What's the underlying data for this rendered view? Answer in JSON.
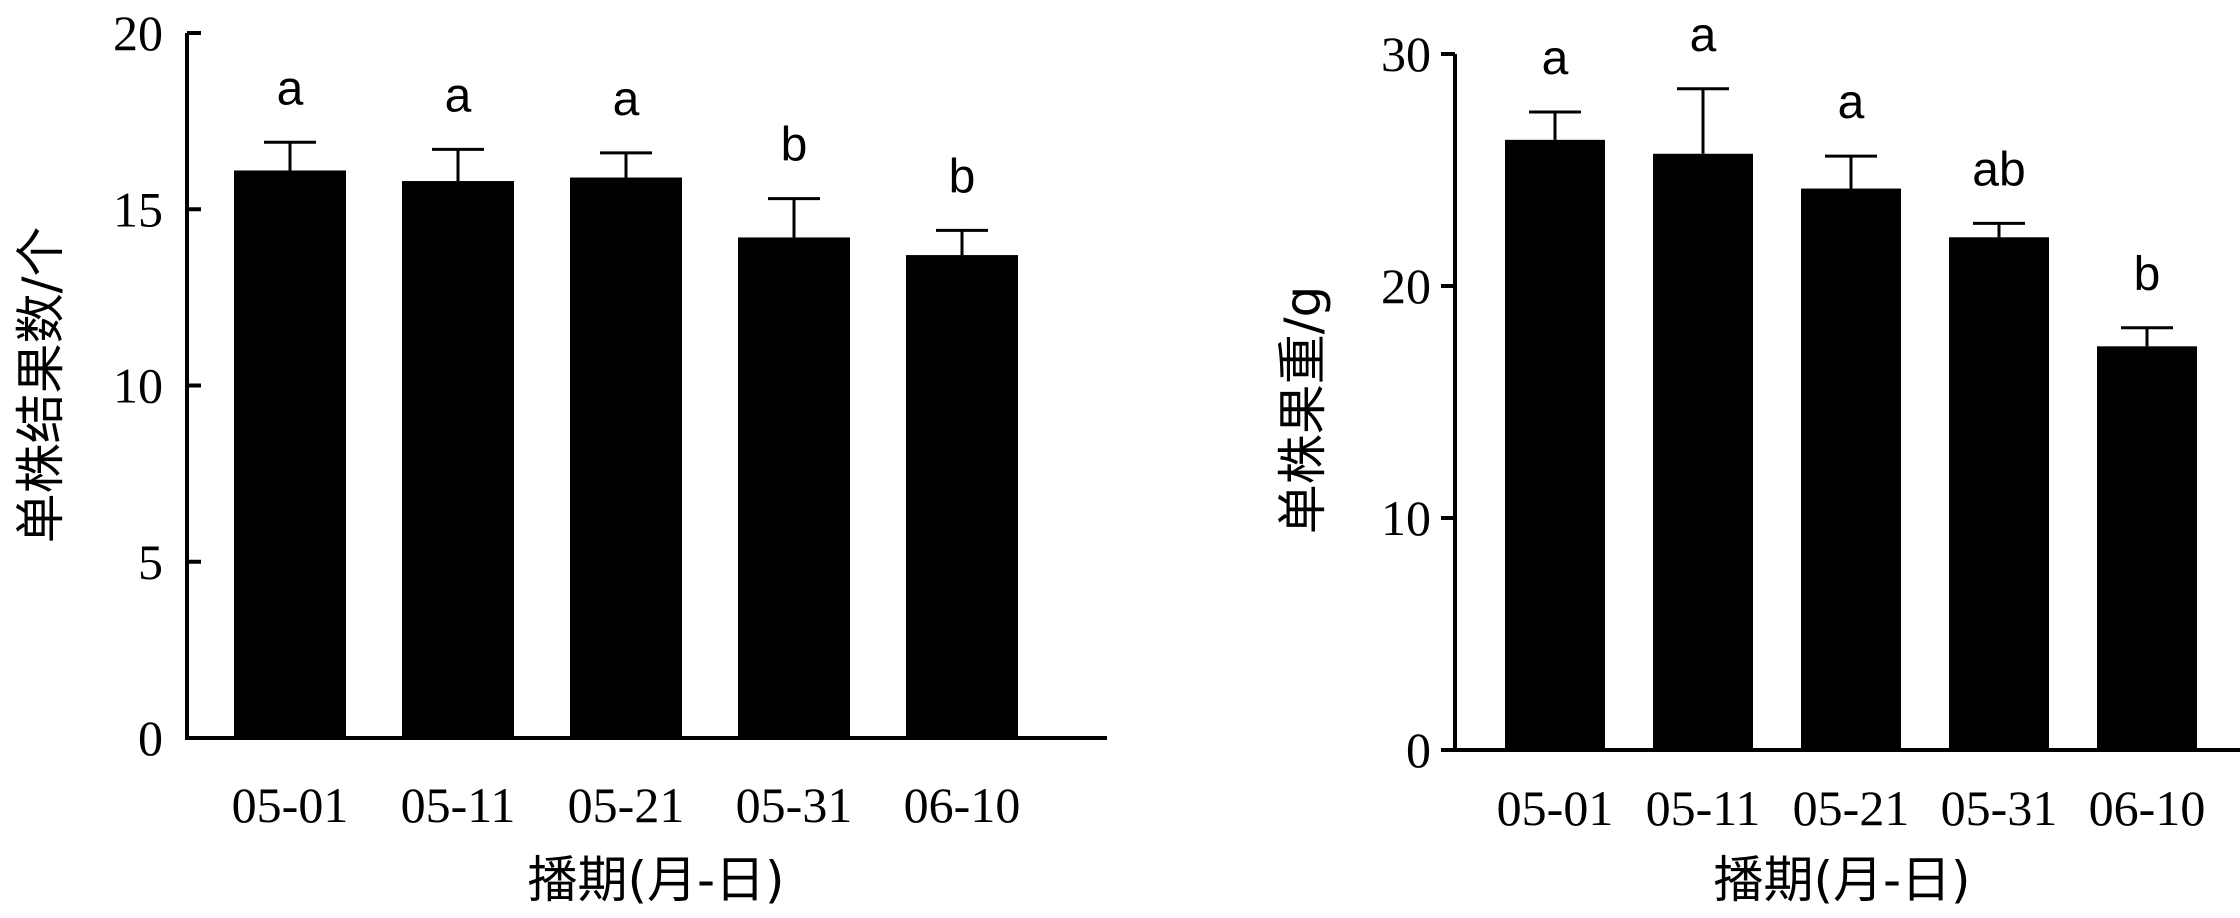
{
  "chart_data": [
    {
      "type": "bar",
      "categories": [
        "05-01",
        "05-11",
        "05-21",
        "05-31",
        "06-10"
      ],
      "values": [
        16.1,
        15.8,
        15.9,
        14.2,
        13.7
      ],
      "errors": [
        0.8,
        0.9,
        0.7,
        1.1,
        0.7
      ],
      "significance": [
        "a",
        "a",
        "a",
        "b",
        "b"
      ],
      "title": "",
      "xlabel": "播期(月-日)",
      "ylabel": "单株结果数/个",
      "ylim": [
        0,
        20
      ],
      "yticks": [
        "0",
        "5",
        "10",
        "15",
        "20"
      ],
      "grid": false,
      "bar_color": "#000000"
    },
    {
      "type": "bar",
      "categories": [
        "05-01",
        "05-11",
        "05-21",
        "05-31",
        "06-10"
      ],
      "values": [
        26.3,
        25.7,
        24.2,
        22.1,
        17.4
      ],
      "errors": [
        1.2,
        2.8,
        1.4,
        0.6,
        0.8
      ],
      "significance": [
        "a",
        "a",
        "a",
        "ab",
        "b"
      ],
      "title": "",
      "xlabel": "播期(月-日)",
      "ylabel": "单株果重/g",
      "ylim": [
        0,
        30
      ],
      "yticks": [
        "0",
        "10",
        "20",
        "30"
      ],
      "grid": false,
      "bar_color": "#000000"
    }
  ]
}
